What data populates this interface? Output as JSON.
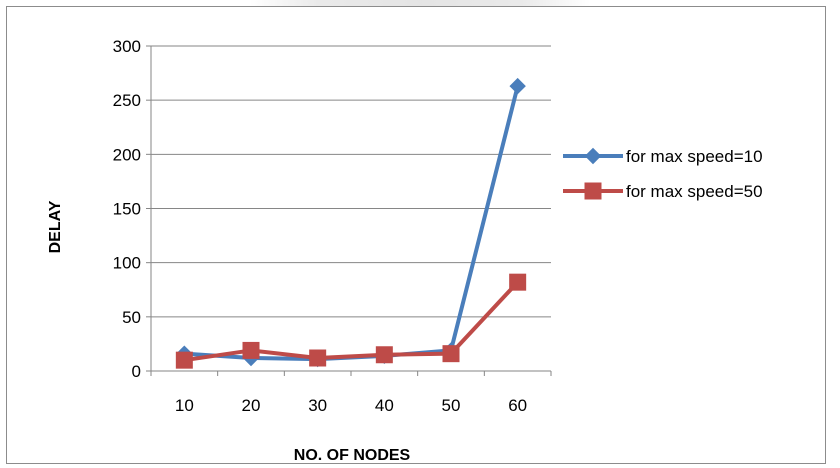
{
  "chart_data": {
    "type": "line",
    "title": "",
    "xlabel": "NO. OF NODES",
    "ylabel": "DELAY",
    "categories": [
      "10",
      "20",
      "30",
      "40",
      "50",
      "60"
    ],
    "ylim": [
      0,
      300
    ],
    "yticks": [
      0,
      50,
      100,
      150,
      200,
      250,
      300
    ],
    "grid": "horizontal",
    "legend_position": "right",
    "series": [
      {
        "name": "for max speed=10",
        "values": [
          16,
          12,
          11,
          14,
          19,
          263
        ],
        "color": "#4a7ebb",
        "marker": "diamond"
      },
      {
        "name": "for max speed=50",
        "values": [
          10,
          19,
          12,
          15,
          16,
          82
        ],
        "color": "#be4b48",
        "marker": "square"
      }
    ]
  }
}
